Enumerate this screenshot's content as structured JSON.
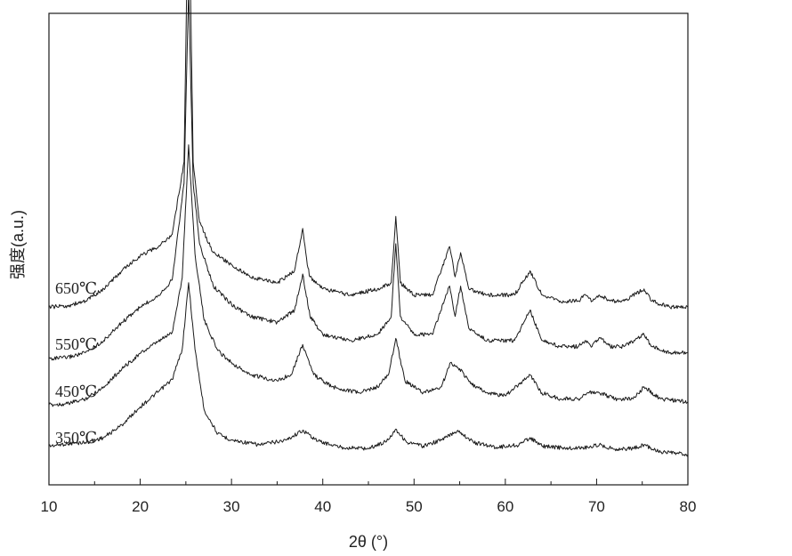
{
  "chart_data": {
    "type": "line",
    "title": "",
    "xlabel": "2θ (°)",
    "ylabel": "强度(a.u.)",
    "xlim": [
      10,
      80
    ],
    "x_ticks": [
      10,
      20,
      30,
      40,
      50,
      60,
      70,
      80
    ],
    "y_ticks_shown": false,
    "grid": false,
    "legend": "inline labels at left",
    "series": [
      {
        "name": "350℃",
        "points": [
          [
            10,
            0.02
          ],
          [
            12,
            0.024
          ],
          [
            14,
            0.026
          ],
          [
            16,
            0.034
          ],
          [
            18,
            0.055
          ],
          [
            20,
            0.085
          ],
          [
            22,
            0.11
          ],
          [
            23.5,
            0.13
          ],
          [
            24.6,
            0.18
          ],
          [
            25.3,
            0.29
          ],
          [
            26.0,
            0.18
          ],
          [
            27,
            0.08
          ],
          [
            28.5,
            0.04
          ],
          [
            30,
            0.03
          ],
          [
            33,
            0.022
          ],
          [
            36,
            0.03
          ],
          [
            37.8,
            0.046
          ],
          [
            39.5,
            0.028
          ],
          [
            42,
            0.018
          ],
          [
            45,
            0.016
          ],
          [
            47,
            0.028
          ],
          [
            48.0,
            0.048
          ],
          [
            49.2,
            0.026
          ],
          [
            51,
            0.02
          ],
          [
            53,
            0.03
          ],
          [
            54.8,
            0.046
          ],
          [
            56.5,
            0.026
          ],
          [
            59,
            0.018
          ],
          [
            61.5,
            0.022
          ],
          [
            62.7,
            0.034
          ],
          [
            64,
            0.02
          ],
          [
            67,
            0.016
          ],
          [
            69,
            0.018
          ],
          [
            70.3,
            0.022
          ],
          [
            72,
            0.015
          ],
          [
            74,
            0.016
          ],
          [
            75.2,
            0.022
          ],
          [
            77,
            0.01
          ],
          [
            80,
            0.006
          ]
        ]
      },
      {
        "name": "450℃",
        "points": [
          [
            10,
            0.01
          ],
          [
            12,
            0.012
          ],
          [
            14,
            0.02
          ],
          [
            16,
            0.04
          ],
          [
            18,
            0.07
          ],
          [
            20,
            0.095
          ],
          [
            22,
            0.115
          ],
          [
            23.5,
            0.13
          ],
          [
            24.6,
            0.22
          ],
          [
            25.3,
            0.44
          ],
          [
            26.0,
            0.26
          ],
          [
            27,
            0.15
          ],
          [
            28.5,
            0.1
          ],
          [
            30,
            0.08
          ],
          [
            32,
            0.06
          ],
          [
            35,
            0.05
          ],
          [
            36.5,
            0.06
          ],
          [
            37.8,
            0.11
          ],
          [
            39,
            0.06
          ],
          [
            41,
            0.04
          ],
          [
            44,
            0.03
          ],
          [
            46,
            0.04
          ],
          [
            47.2,
            0.06
          ],
          [
            48.0,
            0.12
          ],
          [
            49,
            0.05
          ],
          [
            51,
            0.03
          ],
          [
            53,
            0.04
          ],
          [
            54,
            0.08
          ],
          [
            55,
            0.07
          ],
          [
            56.2,
            0.045
          ],
          [
            58,
            0.03
          ],
          [
            60,
            0.025
          ],
          [
            62.7,
            0.06
          ],
          [
            64,
            0.03
          ],
          [
            66,
            0.02
          ],
          [
            68,
            0.02
          ],
          [
            69,
            0.03
          ],
          [
            70.3,
            0.03
          ],
          [
            72,
            0.02
          ],
          [
            74,
            0.02
          ],
          [
            75.2,
            0.04
          ],
          [
            77,
            0.02
          ],
          [
            80,
            0.015
          ]
        ]
      },
      {
        "name": "550℃",
        "points": [
          [
            10,
            0.01
          ],
          [
            12,
            0.012
          ],
          [
            14,
            0.02
          ],
          [
            16,
            0.04
          ],
          [
            18,
            0.07
          ],
          [
            20,
            0.095
          ],
          [
            22,
            0.115
          ],
          [
            23.5,
            0.14
          ],
          [
            24.8,
            0.3
          ],
          [
            25.3,
            0.62
          ],
          [
            25.8,
            0.3
          ],
          [
            26.5,
            0.2
          ],
          [
            28,
            0.13
          ],
          [
            30,
            0.1
          ],
          [
            32,
            0.08
          ],
          [
            35,
            0.07
          ],
          [
            36.9,
            0.09
          ],
          [
            37.8,
            0.15
          ],
          [
            38.6,
            0.08
          ],
          [
            40,
            0.05
          ],
          [
            43,
            0.04
          ],
          [
            46,
            0.05
          ],
          [
            47.5,
            0.08
          ],
          [
            48.0,
            0.2
          ],
          [
            48.5,
            0.08
          ],
          [
            50,
            0.05
          ],
          [
            52,
            0.05
          ],
          [
            53.9,
            0.13
          ],
          [
            54.5,
            0.08
          ],
          [
            55.1,
            0.13
          ],
          [
            56,
            0.06
          ],
          [
            58,
            0.04
          ],
          [
            61,
            0.04
          ],
          [
            62.7,
            0.09
          ],
          [
            64,
            0.04
          ],
          [
            66,
            0.03
          ],
          [
            68,
            0.03
          ],
          [
            68.8,
            0.04
          ],
          [
            69.5,
            0.03
          ],
          [
            70.3,
            0.045
          ],
          [
            71.5,
            0.03
          ],
          [
            73,
            0.03
          ],
          [
            75.2,
            0.05
          ],
          [
            76,
            0.03
          ],
          [
            78,
            0.02
          ],
          [
            80,
            0.02
          ]
        ]
      },
      {
        "name": "650℃",
        "points": [
          [
            10,
            0.01
          ],
          [
            12,
            0.012
          ],
          [
            14,
            0.02
          ],
          [
            16,
            0.04
          ],
          [
            18,
            0.07
          ],
          [
            20,
            0.095
          ],
          [
            22,
            0.11
          ],
          [
            23.5,
            0.13
          ],
          [
            24.8,
            0.25
          ],
          [
            25.3,
            0.74
          ],
          [
            25.8,
            0.25
          ],
          [
            26.5,
            0.15
          ],
          [
            28,
            0.1
          ],
          [
            30,
            0.08
          ],
          [
            32,
            0.06
          ],
          [
            35,
            0.05
          ],
          [
            36.9,
            0.07
          ],
          [
            37.8,
            0.14
          ],
          [
            38.3,
            0.08
          ],
          [
            38.6,
            0.06
          ],
          [
            40,
            0.04
          ],
          [
            43,
            0.03
          ],
          [
            46,
            0.04
          ],
          [
            47.5,
            0.05
          ],
          [
            48.0,
            0.16
          ],
          [
            48.5,
            0.05
          ],
          [
            50,
            0.03
          ],
          [
            52,
            0.03
          ],
          [
            53.9,
            0.11
          ],
          [
            54.5,
            0.06
          ],
          [
            55.1,
            0.1
          ],
          [
            56,
            0.04
          ],
          [
            58,
            0.03
          ],
          [
            61,
            0.03
          ],
          [
            62.7,
            0.07
          ],
          [
            64,
            0.03
          ],
          [
            66,
            0.02
          ],
          [
            68,
            0.02
          ],
          [
            68.8,
            0.03
          ],
          [
            69.5,
            0.02
          ],
          [
            70.3,
            0.03
          ],
          [
            71.5,
            0.02
          ],
          [
            73,
            0.02
          ],
          [
            75.2,
            0.04
          ],
          [
            76,
            0.02
          ],
          [
            78,
            0.01
          ],
          [
            80,
            0.01
          ]
        ]
      }
    ]
  }
}
